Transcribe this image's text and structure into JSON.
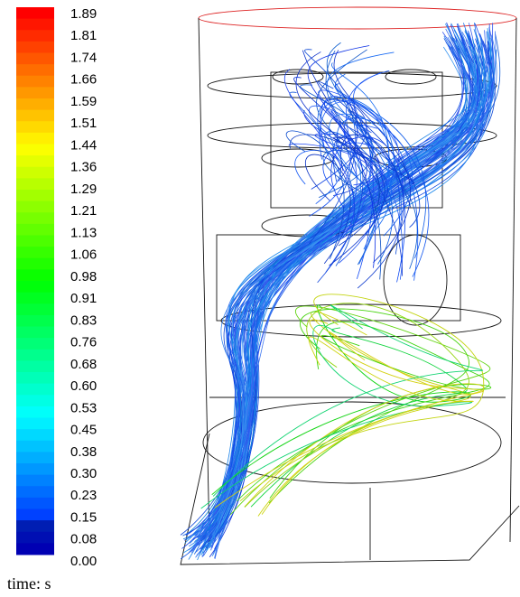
{
  "colorbar": {
    "labels": [
      "1.89",
      "1.81",
      "1.74",
      "1.66",
      "1.59",
      "1.51",
      "1.44",
      "1.36",
      "1.29",
      "1.21",
      "1.13",
      "1.06",
      "0.98",
      "0.91",
      "0.83",
      "0.76",
      "0.68",
      "0.60",
      "0.53",
      "0.45",
      "0.38",
      "0.30",
      "0.23",
      "0.15",
      "0.08",
      "0.00"
    ]
  },
  "caption": "time: s"
}
